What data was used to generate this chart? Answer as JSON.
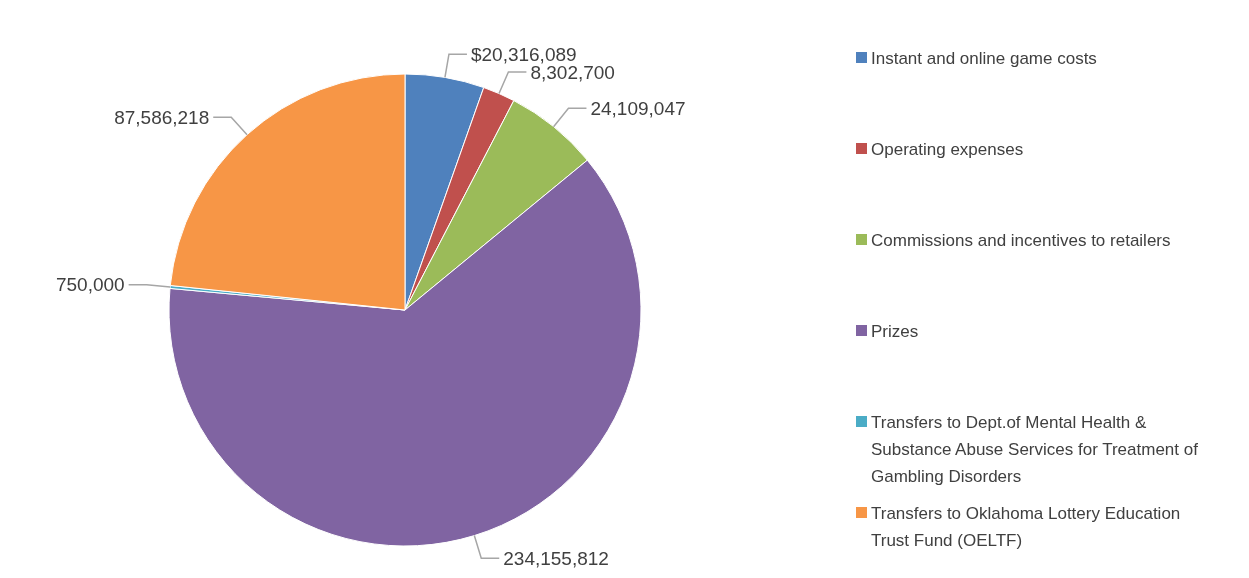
{
  "chart_data": {
    "type": "pie",
    "categories": [
      "Instant and online game costs",
      "Operating expenses",
      "Commissions and incentives to retailers",
      "Prizes",
      "Transfers to Dept.of Mental Health & Substance Abuse Services for Treatment of Gambling Disorders",
      "Transfers to Oklahoma Lottery Education Trust Fund (OELTF)"
    ],
    "values": [
      20316089,
      8302700,
      24109047,
      234155812,
      750000,
      87586218
    ],
    "value_labels": [
      "$20,316,089",
      "8,302,700",
      "24,109,047",
      "234,155,812",
      "750,000",
      "87,586,218"
    ],
    "colors": [
      "#4f81bd",
      "#c0504d",
      "#9bbb59",
      "#8064a2",
      "#4bacc6",
      "#f79646"
    ],
    "legend": "right"
  }
}
